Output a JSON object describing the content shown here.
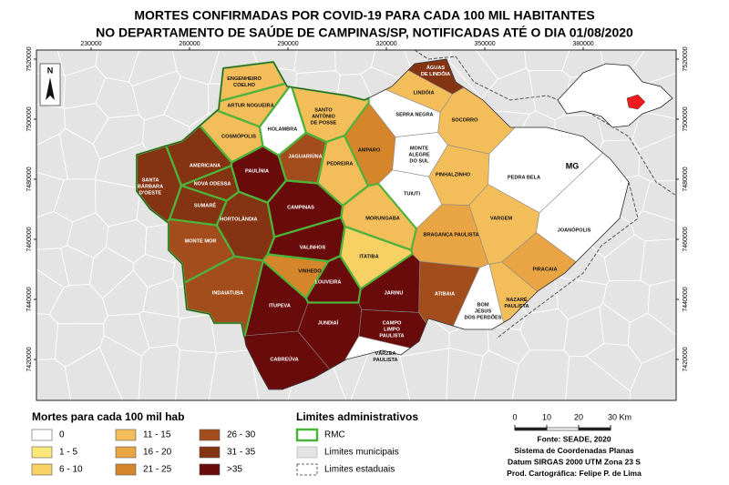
{
  "title": [
    "MORTES CONFIRMADAS POR COVID-19 PARA CADA 100 MIL HABITANTES",
    "NO DEPARTAMENTO DE SAÚDE DE CAMPINAS/SP, NOTIFICADAS ATÉ O DIA 01/08/2020"
  ],
  "map": {
    "xticks": [
      230000,
      260000,
      290000,
      320000,
      350000,
      380000
    ],
    "yticks": [
      7520000,
      7500000,
      7480000,
      7460000,
      7440000,
      7420000
    ],
    "state_label": "MG",
    "north": "N",
    "municipalities": [
      {
        "name": [
          "ÁGUAS",
          "DE LINDÓIA"
        ],
        "class": "31 - 35",
        "rmc": false
      },
      {
        "name": [
          "LINDÓIA"
        ],
        "class": "11 - 15",
        "rmc": false
      },
      {
        "name": [
          "ENGENHEIRO",
          "COELHO"
        ],
        "class": "11 - 15",
        "rmc": true
      },
      {
        "name": [
          "ARTUR NOGUEIRA"
        ],
        "class": "11 - 15",
        "rmc": true
      },
      {
        "name": [
          "SANTO",
          "ANTÔNIO",
          "DE POSSE"
        ],
        "class": "11 - 15",
        "rmc": true
      },
      {
        "name": [
          "HOLAMBRA"
        ],
        "class": "0",
        "rmc": true
      },
      {
        "name": [
          "COSMÓPOLIS"
        ],
        "class": "11 - 15",
        "rmc": true
      },
      {
        "name": [
          "SERRA NEGRA"
        ],
        "class": "0",
        "rmc": false
      },
      {
        "name": [
          "SOCORRO"
        ],
        "class": "11 - 15",
        "rmc": false
      },
      {
        "name": [
          "AMPARO"
        ],
        "class": "21 - 25",
        "rmc": false
      },
      {
        "name": [
          "MONTE",
          "ALEGRE",
          "DO SUL"
        ],
        "class": "0",
        "rmc": false
      },
      {
        "name": [
          "JAGUARIÚNA"
        ],
        "class": "26 - 30",
        "rmc": true
      },
      {
        "name": [
          "PEDREIRA"
        ],
        "class": "11 - 15",
        "rmc": true
      },
      {
        "name": [
          "PINHALZINHO"
        ],
        "class": "11 - 15",
        "rmc": false
      },
      {
        "name": [
          "PEDRA BELA"
        ],
        "class": "0",
        "rmc": false
      },
      {
        "name": [
          "AMERICANA"
        ],
        "class": "31 - 35",
        "rmc": true
      },
      {
        "name": [
          "PAULÍNIA"
        ],
        "class": ">35",
        "rmc": true
      },
      {
        "name": [
          "SANTA",
          "BÁRBARA",
          "D'OESTE"
        ],
        "class": "31 - 35",
        "rmc": true
      },
      {
        "name": [
          "NOVA ODESSA"
        ],
        "class": "31 - 35",
        "rmc": true
      },
      {
        "name": [
          "TUIUTI"
        ],
        "class": "0",
        "rmc": false
      },
      {
        "name": [
          "SUMARÉ"
        ],
        "class": "31 - 35",
        "rmc": true
      },
      {
        "name": [
          "HORTOLÂNDIA"
        ],
        "class": "31 - 35",
        "rmc": true
      },
      {
        "name": [
          "CAMPINAS"
        ],
        "class": ">35",
        "rmc": true
      },
      {
        "name": [
          "MORUNGABA"
        ],
        "class": "11 - 15",
        "rmc": true
      },
      {
        "name": [
          "VARGEM"
        ],
        "class": "11 - 15",
        "rmc": false
      },
      {
        "name": [
          "JOANÓPOLIS"
        ],
        "class": "0",
        "rmc": false
      },
      {
        "name": [
          "BRAGANÇA PAULISTA"
        ],
        "class": "16 - 20",
        "rmc": false
      },
      {
        "name": [
          "MONTE MOR"
        ],
        "class": "26 - 30",
        "rmc": true
      },
      {
        "name": [
          "VALINHOS"
        ],
        "class": ">35",
        "rmc": true
      },
      {
        "name": [
          "ITATIBA"
        ],
        "class": "6 - 10",
        "rmc": true
      },
      {
        "name": [
          "VINHEDO"
        ],
        "class": "21 - 25",
        "rmc": true
      },
      {
        "name": [
          "PIRACAIA"
        ],
        "class": "16 - 20",
        "rmc": false
      },
      {
        "name": [
          "INDAIATUBA"
        ],
        "class": "26 - 30",
        "rmc": true
      },
      {
        "name": [
          "LOUVEIRA"
        ],
        "class": ">35",
        "rmc": true
      },
      {
        "name": [
          "ATIBAIA"
        ],
        "class": "26 - 30",
        "rmc": false
      },
      {
        "name": [
          "JARINU"
        ],
        "class": ">35",
        "rmc": false
      },
      {
        "name": [
          "BOM",
          "JESUS",
          "DOS PERDÕES"
        ],
        "class": "0",
        "rmc": false
      },
      {
        "name": [
          "NAZARÉ",
          "PAULISTA"
        ],
        "class": "11 - 15",
        "rmc": false
      },
      {
        "name": [
          "ITUPEVA"
        ],
        "class": ">35",
        "rmc": false
      },
      {
        "name": [
          "JUNDIAÍ"
        ],
        "class": ">35",
        "rmc": false
      },
      {
        "name": [
          "CAMPO",
          "LIMPO",
          "PAULISTA"
        ],
        "class": ">35",
        "rmc": false
      },
      {
        "name": [
          "VÁRZEA",
          "PAULISTA"
        ],
        "class": "0",
        "rmc": false
      },
      {
        "name": [
          "CABREÚVA"
        ],
        "class": ">35",
        "rmc": false
      }
    ]
  },
  "legend": {
    "title": "Mortes para cada 100 mil hab",
    "classes": [
      {
        "label": "0",
        "color": "#ffffff"
      },
      {
        "label": "1 - 5",
        "color": "#fbe67a"
      },
      {
        "label": "6 - 10",
        "color": "#f8d165"
      },
      {
        "label": "11 - 15",
        "color": "#f3bd5a"
      },
      {
        "label": "16 - 20",
        "color": "#e9a444"
      },
      {
        "label": "21 - 25",
        "color": "#d5862a"
      },
      {
        "label": "26 - 30",
        "color": "#a34d1c"
      },
      {
        "label": "31 - 35",
        "color": "#843413"
      },
      {
        "label": ">35",
        "color": "#690b0b"
      }
    ]
  },
  "admin": {
    "title": "Limites administrativos",
    "items": [
      "RMC",
      "Limites municipais",
      "Limites estaduais"
    ]
  },
  "scale": {
    "ticks": [
      0,
      10,
      20,
      {
        "value": 30,
        "label": "30 Km"
      }
    ]
  },
  "credits": [
    "Fonte: SEADE, 2020",
    "Sistema de Coordenadas Planas",
    "Datum SIRGAS 2000 UTM Zona 23 S",
    "Prod. Cartográfica: Felipe P. de Lima"
  ]
}
